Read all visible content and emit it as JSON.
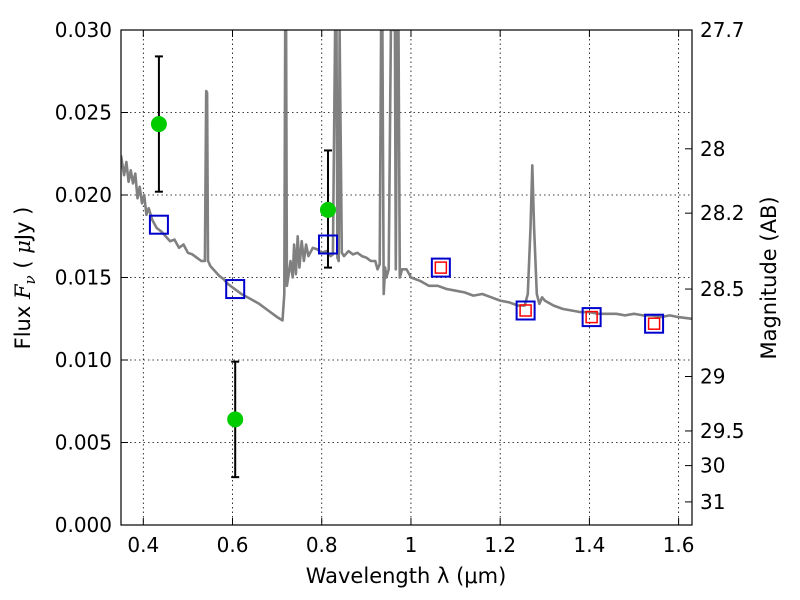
{
  "chart_data": {
    "type": "scatter",
    "title": "",
    "xlabel": "Wavelength  λ (μm)",
    "ylabel": "Flux  F_ν  ( μJy )",
    "ylabel_parts": [
      "Flux ",
      "F",
      "ν",
      "  ( ",
      "μ",
      "Jy )"
    ],
    "y2label": "Magnitude (AB)",
    "xlim": [
      0.35,
      1.63
    ],
    "ylim": [
      0.0,
      0.03
    ],
    "grid": true,
    "x_ticks": [
      0.4,
      0.6,
      0.8,
      1.0,
      1.2,
      1.4,
      1.6
    ],
    "x_tick_labels": [
      "0.4",
      "0.6",
      "0.8",
      "1",
      "1.2",
      "1.4",
      "1.6"
    ],
    "y_ticks": [
      0.0,
      0.005,
      0.01,
      0.015,
      0.02,
      0.025,
      0.03
    ],
    "y_tick_labels": [
      "0.000",
      "0.005",
      "0.010",
      "0.015",
      "0.020",
      "0.025",
      "0.030"
    ],
    "y2_ticks": [
      {
        "label": "27.7",
        "flux": 0.03
      },
      {
        "label": "28",
        "flux": 0.0228
      },
      {
        "label": "28.2",
        "flux": 0.0189
      },
      {
        "label": "28.5",
        "flux": 0.0143
      },
      {
        "label": "29",
        "flux": 0.009
      },
      {
        "label": "29.5",
        "flux": 0.0057
      },
      {
        "label": "30",
        "flux": 0.0036
      },
      {
        "label": "31",
        "flux": 0.0014
      }
    ],
    "series": [
      {
        "name": "model spectrum",
        "kind": "line",
        "color": "#808080",
        "x": [
          0.35,
          0.357,
          0.362,
          0.367,
          0.372,
          0.377,
          0.382,
          0.387,
          0.392,
          0.397,
          0.402,
          0.407,
          0.412,
          0.42,
          0.43,
          0.44,
          0.45,
          0.46,
          0.47,
          0.48,
          0.49,
          0.5,
          0.51,
          0.52,
          0.53,
          0.538,
          0.541,
          0.543,
          0.545,
          0.547,
          0.55,
          0.56,
          0.57,
          0.58,
          0.59,
          0.6,
          0.61,
          0.62,
          0.64,
          0.66,
          0.68,
          0.7,
          0.712,
          0.716,
          0.718,
          0.72,
          0.722,
          0.726,
          0.73,
          0.735,
          0.738,
          0.742,
          0.746,
          0.75,
          0.755,
          0.76,
          0.765,
          0.77,
          0.78,
          0.79,
          0.8,
          0.81,
          0.82,
          0.825,
          0.83,
          0.833,
          0.835,
          0.838,
          0.84,
          0.845,
          0.85,
          0.86,
          0.87,
          0.88,
          0.89,
          0.9,
          0.91,
          0.92,
          0.925,
          0.93,
          0.933,
          0.936,
          0.939,
          0.942,
          0.945,
          0.95,
          0.955,
          0.958,
          0.961,
          0.964,
          0.966,
          0.969,
          0.972,
          0.975,
          0.98,
          0.99,
          1.0,
          1.02,
          1.04,
          1.06,
          1.08,
          1.1,
          1.12,
          1.14,
          1.16,
          1.18,
          1.2,
          1.22,
          1.24,
          1.255,
          1.262,
          1.268,
          1.272,
          1.276,
          1.282,
          1.288,
          1.294,
          1.3,
          1.32,
          1.34,
          1.36,
          1.38,
          1.4,
          1.42,
          1.44,
          1.46,
          1.48,
          1.5,
          1.52,
          1.54,
          1.56,
          1.58,
          1.6,
          1.63
        ],
        "y": [
          0.0224,
          0.0212,
          0.022,
          0.0208,
          0.0215,
          0.0207,
          0.0213,
          0.0198,
          0.0205,
          0.0195,
          0.02,
          0.0188,
          0.0192,
          0.0185,
          0.018,
          0.0178,
          0.0175,
          0.0172,
          0.0173,
          0.0168,
          0.017,
          0.0165,
          0.0164,
          0.0162,
          0.016,
          0.016,
          0.0263,
          0.0262,
          0.016,
          0.0159,
          0.0157,
          0.0154,
          0.0151,
          0.0149,
          0.0146,
          0.0144,
          0.0142,
          0.014,
          0.0137,
          0.0134,
          0.013,
          0.0126,
          0.0124,
          0.014,
          0.03,
          0.03,
          0.0145,
          0.0152,
          0.016,
          0.015,
          0.017,
          0.0152,
          0.0175,
          0.0156,
          0.0172,
          0.016,
          0.017,
          0.0163,
          0.0168,
          0.0167,
          0.0165,
          0.0166,
          0.0163,
          0.0164,
          0.03,
          0.03,
          0.0162,
          0.016,
          0.03,
          0.0165,
          0.0163,
          0.0166,
          0.0164,
          0.0165,
          0.0163,
          0.0162,
          0.016,
          0.016,
          0.0155,
          0.0158,
          0.03,
          0.03,
          0.014,
          0.0156,
          0.015,
          0.0155,
          0.03,
          0.03,
          0.03,
          0.03,
          0.0155,
          0.03,
          0.03,
          0.015,
          0.0155,
          0.0155,
          0.015,
          0.0148,
          0.0145,
          0.0145,
          0.0143,
          0.0142,
          0.0141,
          0.0139,
          0.014,
          0.0138,
          0.0136,
          0.0135,
          0.0133,
          0.0133,
          0.014,
          0.018,
          0.0218,
          0.018,
          0.014,
          0.0134,
          0.0138,
          0.0136,
          0.0133,
          0.0131,
          0.013,
          0.0129,
          0.0129,
          0.0128,
          0.0128,
          0.0128,
          0.0127,
          0.0128,
          0.0127,
          0.0127,
          0.0126,
          0.0127,
          0.0126,
          0.0125
        ]
      },
      {
        "name": "observed photometry",
        "kind": "points",
        "marker": "circle",
        "color": "#00cc00",
        "points": [
          {
            "x": 0.435,
            "y": 0.0243,
            "err_low": 0.0202,
            "err_high": 0.0284
          },
          {
            "x": 0.606,
            "y": 0.0064,
            "err_low": 0.0029,
            "err_high": 0.0099
          },
          {
            "x": 0.814,
            "y": 0.0191,
            "err_low": 0.0156,
            "err_high": 0.0227
          }
        ]
      },
      {
        "name": "model bandpass flux",
        "kind": "points",
        "marker": "open-square",
        "color": "#0000cc",
        "points": [
          {
            "x": 0.435,
            "y": 0.0182
          },
          {
            "x": 0.606,
            "y": 0.0143
          },
          {
            "x": 0.814,
            "y": 0.017
          },
          {
            "x": 1.067,
            "y": 0.0156
          },
          {
            "x": 1.257,
            "y": 0.013
          },
          {
            "x": 1.405,
            "y": 0.0126
          },
          {
            "x": 1.545,
            "y": 0.0122
          }
        ]
      },
      {
        "name": "NIR model flux",
        "kind": "points",
        "marker": "open-square-small",
        "color": "#ff0000",
        "points": [
          {
            "x": 1.067,
            "y": 0.0156
          },
          {
            "x": 1.257,
            "y": 0.013
          },
          {
            "x": 1.405,
            "y": 0.0126
          },
          {
            "x": 1.545,
            "y": 0.0122
          }
        ]
      }
    ]
  }
}
